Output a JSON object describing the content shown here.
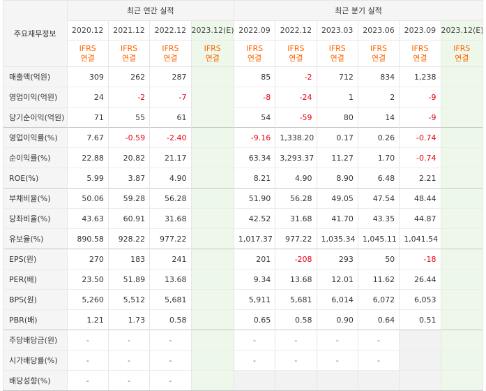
{
  "header": {
    "row_header_label": "주요재무정보",
    "annual_group_label": "최근 연간 실적",
    "quarter_group_label": "최근 분기 실적",
    "basis_label_line1": "IFRS",
    "basis_label_line2": "연결"
  },
  "columns": {
    "annual": [
      "2020.12",
      "2021.12",
      "2022.12",
      "2023.12(E)"
    ],
    "quarter": [
      "2022.09",
      "2022.12",
      "2023.03",
      "2023.06",
      "2023.09",
      "2023.12(E)"
    ]
  },
  "rows": [
    {
      "label": "매출액(억원)",
      "group": "a",
      "annual": [
        "309",
        "262",
        "287",
        ""
      ],
      "quarter": [
        "85",
        "-2",
        "712",
        "834",
        "1,238",
        ""
      ]
    },
    {
      "label": "영업이익(억원)",
      "group": "a",
      "annual": [
        "24",
        "-2",
        "-7",
        ""
      ],
      "quarter": [
        "-8",
        "-24",
        "1",
        "2",
        "-9",
        ""
      ]
    },
    {
      "label": "당기순이익(억원)",
      "group": "a",
      "annual": [
        "71",
        "55",
        "61",
        ""
      ],
      "quarter": [
        "54",
        "-59",
        "80",
        "14",
        "-9",
        ""
      ]
    },
    {
      "label": "영업이익률(%)",
      "group": "b",
      "annual": [
        "7.67",
        "-0.59",
        "-2.40",
        ""
      ],
      "quarter": [
        "-9.16",
        "1,338.20",
        "0.17",
        "0.26",
        "-0.74",
        ""
      ]
    },
    {
      "label": "순이익률(%)",
      "group": "b",
      "annual": [
        "22.88",
        "20.82",
        "21.17",
        ""
      ],
      "quarter": [
        "63.34",
        "3,293.37",
        "11.27",
        "1.70",
        "-0.74",
        ""
      ]
    },
    {
      "label": "ROE(%)",
      "group": "b",
      "annual": [
        "5.99",
        "3.87",
        "4.90",
        ""
      ],
      "quarter": [
        "8.21",
        "4.90",
        "8.90",
        "6.48",
        "2.21",
        ""
      ]
    },
    {
      "label": "부채비율(%)",
      "group": "c",
      "annual": [
        "50.06",
        "59.28",
        "56.28",
        ""
      ],
      "quarter": [
        "51.90",
        "56.28",
        "49.05",
        "47.54",
        "48.44",
        ""
      ]
    },
    {
      "label": "당좌비율(%)",
      "group": "c",
      "annual": [
        "43.63",
        "60.91",
        "31.68",
        ""
      ],
      "quarter": [
        "42.52",
        "31.68",
        "41.70",
        "43.35",
        "44.87",
        ""
      ]
    },
    {
      "label": "유보율(%)",
      "group": "c",
      "annual": [
        "890.58",
        "928.22",
        "977.22",
        ""
      ],
      "quarter": [
        "1,017.37",
        "977.22",
        "1,035.34",
        "1,045.11",
        "1,041.54",
        ""
      ]
    },
    {
      "label": "EPS(원)",
      "group": "d",
      "annual": [
        "270",
        "183",
        "241",
        ""
      ],
      "quarter": [
        "201",
        "-208",
        "293",
        "50",
        "-18",
        ""
      ]
    },
    {
      "label": "PER(배)",
      "group": "d",
      "annual": [
        "23.50",
        "51.89",
        "13.68",
        ""
      ],
      "quarter": [
        "9.34",
        "13.68",
        "12.01",
        "11.62",
        "26.44",
        ""
      ]
    },
    {
      "label": "BPS(원)",
      "group": "d",
      "annual": [
        "5,260",
        "5,512",
        "5,681",
        ""
      ],
      "quarter": [
        "5,911",
        "5,681",
        "6,014",
        "6,072",
        "6,053",
        ""
      ]
    },
    {
      "label": "PBR(배)",
      "group": "d",
      "annual": [
        "1.21",
        "1.73",
        "0.58",
        ""
      ],
      "quarter": [
        "0.65",
        "0.58",
        "0.90",
        "0.64",
        "0.51",
        ""
      ]
    },
    {
      "label": "주당배당금(원)",
      "group": "e",
      "annual": [
        "-",
        "-",
        "-",
        ""
      ],
      "quarter": [
        "-",
        "-",
        "-",
        "-",
        "",
        ""
      ]
    },
    {
      "label": "시가배당률(%)",
      "group": "e",
      "annual": [
        "-",
        "-",
        "-",
        ""
      ],
      "quarter": [
        "-",
        "-",
        "-",
        "-",
        "",
        ""
      ]
    },
    {
      "label": "배당성향(%)",
      "group": "e",
      "annual": [
        "-",
        "-",
        "-",
        ""
      ],
      "quarter": [
        "",
        "",
        "",
        "",
        "",
        ""
      ]
    }
  ],
  "colors": {
    "negative": "#e60012",
    "ifrs": "#ff6600",
    "estimate_bg": "#eef8ea",
    "header_bg": "#f5f5f5"
  }
}
